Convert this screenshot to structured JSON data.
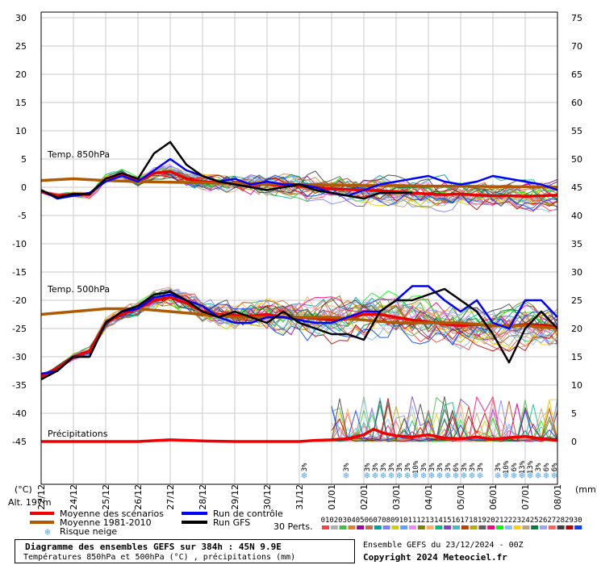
{
  "chart_data": {
    "type": "line",
    "title": "Diagramme des ensembles GEFS sur 384h : 45N 9.9E",
    "subtitle": "Températures 850hPa et 500hPa (°C) , précipitations (mm)",
    "run_info": "Ensemble GEFS du 23/12/2024 - 00Z",
    "copyright": "Copyright 2024 Meteociel.fr",
    "altitude": "Alt. 197m",
    "left_unit": "(°C)",
    "right_unit": "(mm)",
    "section_labels": {
      "t850": "Temp. 850hPa",
      "t500": "Temp. 500hPa",
      "precip": "Précipitations"
    },
    "left_axis": {
      "ticks": [
        30,
        25,
        20,
        15,
        10,
        5,
        0,
        -5,
        -10,
        -15,
        -20,
        -25,
        -30,
        -35,
        -40,
        -45
      ],
      "ylim": [
        -45,
        30
      ]
    },
    "right_axis": {
      "ticks": [
        75,
        70,
        65,
        60,
        55,
        50,
        45,
        40,
        35,
        30,
        25,
        20,
        15,
        10,
        5,
        0
      ],
      "ylim": [
        0,
        75
      ]
    },
    "x_labels": [
      "22/12",
      "24/12",
      "25/12",
      "26/12",
      "27/12",
      "28/12",
      "29/12",
      "30/12",
      "31/12",
      "01/01",
      "02/01",
      "03/01",
      "04/01",
      "05/01",
      "06/01",
      "07/01",
      "08/01"
    ],
    "grid": true,
    "legend": {
      "items": [
        {
          "label": "Moyenne des scénarios",
          "color": "#ee0000"
        },
        {
          "label": "Moyenne 1981-2010",
          "color": "#b05a00"
        },
        {
          "label": "Risque neige",
          "color": "#4fa8e8"
        },
        {
          "label": "Run de contrôle",
          "color": "#0000ff"
        },
        {
          "label": "Run GFS",
          "color": "#000000"
        }
      ],
      "perts_label": "30 Perts.",
      "perts": [
        "01",
        "02",
        "03",
        "04",
        "05",
        "06",
        "07",
        "08",
        "09",
        "10",
        "11",
        "12",
        "13",
        "14",
        "15",
        "16",
        "17",
        "18",
        "19",
        "20",
        "21",
        "22",
        "23",
        "24",
        "25",
        "26",
        "27",
        "28",
        "29",
        "30"
      ],
      "pert_colors": [
        "#ff4040",
        "#b0b0b0",
        "#40c040",
        "#e08020",
        "#a000a0",
        "#c07040",
        "#00a0a0",
        "#8080ff",
        "#d0d000",
        "#60a0ff",
        "#ff80ff",
        "#808000",
        "#ffb060",
        "#00c080",
        "#8040c0",
        "#40c0c0",
        "#c04000",
        "#b0b000",
        "#606060",
        "#ff0080",
        "#00ff00",
        "#80c0ff",
        "#ffd000",
        "#c0a080",
        "#008040",
        "#a0a0ff",
        "#ff6060",
        "#404040",
        "#c00000",
        "#0040ff"
      ]
    },
    "snow_risk": [
      {
        "x": 8.15,
        "label": "3%"
      },
      {
        "x": 9.45,
        "label": "3%"
      },
      {
        "x": 10.1,
        "label": "3%"
      },
      {
        "x": 10.35,
        "label": "3%"
      },
      {
        "x": 10.6,
        "label": "3%"
      },
      {
        "x": 10.85,
        "label": "3%"
      },
      {
        "x": 11.1,
        "label": "3%"
      },
      {
        "x": 11.35,
        "label": "3%"
      },
      {
        "x": 11.6,
        "label": "10%"
      },
      {
        "x": 11.85,
        "label": "3%"
      },
      {
        "x": 12.1,
        "label": "3%"
      },
      {
        "x": 12.35,
        "label": "3%"
      },
      {
        "x": 12.6,
        "label": "3%"
      },
      {
        "x": 12.85,
        "label": "6%"
      },
      {
        "x": 13.1,
        "label": "3%"
      },
      {
        "x": 13.35,
        "label": "3%"
      },
      {
        "x": 13.6,
        "label": "3%"
      },
      {
        "x": 14.15,
        "label": "3%"
      },
      {
        "x": 14.4,
        "label": "10%"
      },
      {
        "x": 14.65,
        "label": "6%"
      },
      {
        "x": 14.9,
        "label": "13%"
      },
      {
        "x": 15.15,
        "label": "13%"
      },
      {
        "x": 15.4,
        "label": "3%"
      },
      {
        "x": 15.65,
        "label": "6%"
      },
      {
        "x": 15.9,
        "label": "6%"
      }
    ],
    "series": [
      {
        "name": "Moyenne des scénarios",
        "group": "t850",
        "x": [
          0,
          0.5,
          1,
          1.5,
          2,
          2.5,
          3,
          3.5,
          4,
          4.5,
          5,
          5.5,
          6,
          6.5,
          7,
          7.5,
          8,
          8.5,
          9,
          9.5,
          10,
          10.5,
          11,
          11.5,
          12,
          12.5,
          13,
          13.5,
          14,
          14.5,
          15,
          15.5,
          16
        ],
        "values": [
          -0.8,
          -1.5,
          -1.2,
          -1.3,
          1.5,
          2.2,
          1.0,
          2.5,
          2.8,
          1.5,
          1.0,
          0.8,
          0.7,
          0.6,
          0.5,
          0.3,
          0.2,
          0,
          -0.3,
          -0.4,
          -0.5,
          -0.6,
          -0.8,
          -1.0,
          -1.2,
          -1.3,
          -1.2,
          -1.4,
          -1.5,
          -1.5,
          -1.6,
          -1.5,
          -1.4
        ]
      },
      {
        "name": "Moyenne 1981-2010",
        "group": "t850",
        "x": [
          0,
          1,
          2,
          3,
          4,
          5,
          6,
          7,
          8,
          9,
          10,
          11,
          12,
          13,
          14,
          15,
          16
        ],
        "values": [
          1.2,
          1.5,
          1.2,
          1.0,
          0.9,
          0.8,
          0.7,
          0.6,
          0.5,
          0.4,
          0.3,
          0.3,
          0.2,
          0.2,
          0.1,
          0.1,
          0.0
        ]
      },
      {
        "name": "Run de contrôle",
        "group": "t850",
        "x": [
          0,
          0.5,
          1,
          1.5,
          2,
          2.5,
          3,
          3.5,
          4,
          4.5,
          5,
          5.5,
          6,
          6.5,
          7,
          7.5,
          8,
          8.5,
          9,
          9.5,
          10,
          10.5,
          11,
          11.5,
          12,
          12.5,
          13,
          13.5,
          14,
          14.5,
          15,
          15.5,
          16
        ],
        "values": [
          -0.5,
          -2.0,
          -1.5,
          -1.0,
          1.0,
          2.0,
          1.0,
          3.0,
          5.0,
          3.0,
          2.0,
          1.0,
          1.5,
          0.5,
          1.0,
          0.5,
          0.5,
          0,
          -1.0,
          -1.5,
          -0.5,
          0.5,
          1.0,
          1.5,
          2.0,
          1.0,
          0.5,
          1.0,
          2.0,
          1.5,
          1.0,
          0.5,
          -0.5
        ]
      },
      {
        "name": "Run GFS",
        "group": "t850",
        "x": [
          0,
          0.5,
          1,
          1.5,
          2,
          2.5,
          3,
          3.5,
          4,
          4.5,
          5,
          5.5,
          6,
          6.5,
          7,
          7.5,
          8,
          8.5,
          9,
          9.5,
          10,
          10.5,
          11,
          11.5
        ],
        "values": [
          -0.5,
          -1.8,
          -1.2,
          -1.2,
          1.5,
          2.5,
          1.5,
          6.0,
          8.0,
          4.0,
          2.0,
          1.0,
          0.5,
          0,
          -0.5,
          0,
          0.5,
          -0.5,
          -1.0,
          -1.5,
          -2.0,
          -1.0,
          -1.0,
          -1.0
        ]
      },
      {
        "name": "Moyenne des scénarios",
        "group": "t500",
        "x": [
          0,
          0.5,
          1,
          1.5,
          2,
          2.5,
          3,
          3.5,
          4,
          4.5,
          5,
          5.5,
          6,
          6.5,
          7,
          7.5,
          8,
          8.5,
          9,
          9.5,
          10,
          10.5,
          11,
          11.5,
          12,
          12.5,
          13,
          13.5,
          14,
          14.5,
          15,
          15.5,
          16
        ],
        "values": [
          -33.5,
          -32,
          -30,
          -29,
          -24,
          -22.5,
          -21.5,
          -20,
          -19.5,
          -20.5,
          -22,
          -22.5,
          -22.7,
          -22.8,
          -22.5,
          -23,
          -23,
          -23.2,
          -23.5,
          -23.3,
          -22.5,
          -22.5,
          -23,
          -23.5,
          -23.8,
          -24.2,
          -24.5,
          -24.3,
          -24.5,
          -24.5,
          -24.3,
          -24.4,
          -24.8
        ]
      },
      {
        "name": "Moyenne 1981-2010",
        "group": "t500",
        "x": [
          0,
          1,
          2,
          3,
          4,
          5,
          6,
          7,
          8,
          9,
          10,
          11,
          12,
          13,
          14,
          15,
          16
        ],
        "values": [
          -22.5,
          -22,
          -21.5,
          -21.5,
          -22,
          -22.5,
          -23,
          -23,
          -23,
          -23,
          -23.5,
          -24,
          -24,
          -24,
          -24.5,
          -24.5,
          -25
        ]
      },
      {
        "name": "Run de contrôle",
        "group": "t500",
        "x": [
          0,
          0.5,
          1,
          1.5,
          2,
          2.5,
          3,
          3.5,
          4,
          4.5,
          5,
          5.5,
          6,
          6.5,
          7,
          7.5,
          8,
          8.5,
          9,
          9.5,
          10,
          10.5,
          11,
          11.5,
          12,
          12.5,
          13,
          13.5,
          14,
          14.5,
          15,
          15.5,
          16
        ],
        "values": [
          -33,
          -32.5,
          -30,
          -30,
          -24,
          -22,
          -21.5,
          -19.5,
          -19,
          -20,
          -21,
          -23,
          -24,
          -24,
          -23,
          -23,
          -23.5,
          -24,
          -24,
          -23,
          -22,
          -22,
          -20,
          -17.5,
          -17.5,
          -20,
          -22,
          -20,
          -24,
          -25,
          -20,
          -20,
          -23
        ]
      },
      {
        "name": "Run GFS",
        "group": "t500",
        "x": [
          0,
          0.5,
          1,
          1.5,
          2,
          2.5,
          3,
          3.5,
          4,
          4.5,
          5,
          5.5,
          6,
          6.5,
          7,
          7.5,
          8,
          8.5,
          9,
          9.5,
          10,
          10.5,
          11,
          11.5,
          12,
          12.5,
          13,
          13.5,
          14,
          14.5,
          15,
          15.5,
          16
        ],
        "values": [
          -34,
          -32.5,
          -30,
          -30,
          -24,
          -22,
          -21,
          -19,
          -18.5,
          -20,
          -22,
          -23,
          -22,
          -23,
          -24,
          -22,
          -24,
          -25,
          -26,
          -26,
          -27,
          -22,
          -20,
          -20,
          -19,
          -18,
          -20,
          -22,
          -26,
          -31,
          -25,
          -22,
          -25
        ]
      },
      {
        "name": "Moyenne des scénarios",
        "group": "precip",
        "x": [
          0,
          1,
          2,
          3,
          4,
          5,
          6,
          7,
          8,
          8.5,
          9,
          9.5,
          10,
          10.3,
          10.6,
          11,
          11.5,
          12,
          12.5,
          13,
          13.5,
          14,
          14.5,
          15,
          15.5,
          16
        ],
        "values": [
          0,
          0,
          0,
          0,
          0.3,
          0.1,
          0,
          0,
          0,
          0.2,
          0.3,
          0.5,
          1.2,
          2.2,
          1.5,
          1.0,
          0.8,
          1.2,
          0.6,
          0.5,
          0.8,
          0.4,
          0.7,
          0.9,
          0.5,
          0.2
        ]
      }
    ]
  }
}
